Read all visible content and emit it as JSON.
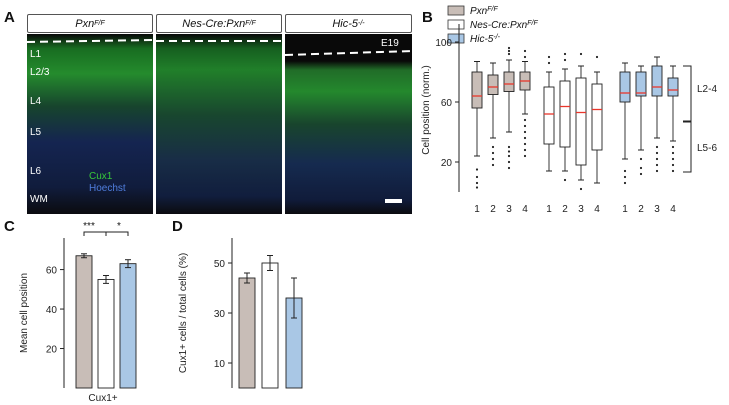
{
  "panel_letters": {
    "a": "A",
    "b": "B",
    "c": "C",
    "d": "D"
  },
  "panel_a": {
    "genotypes": [
      {
        "name": "Pxn",
        "sup": "F/F"
      },
      {
        "name": "Nes-Cre:Pxn",
        "sup": "F/F"
      },
      {
        "name": "Hic-5",
        "sup": "-/-"
      }
    ],
    "age_label": "E19",
    "layers": [
      "L1",
      "L2/3",
      "L4",
      "L5",
      "L6",
      "WM"
    ],
    "stain_labels": [
      "Cux1",
      "Hoechst"
    ],
    "colors": {
      "cux1": "#37c83a",
      "hoechst": "#3f63c9"
    }
  },
  "chart_data": [
    {
      "id": "B",
      "type": "box",
      "ylabel": "Cell position (norm.)",
      "yticks": [
        20,
        60,
        100
      ],
      "ylim": [
        0,
        112
      ],
      "categories": [
        "1",
        "2",
        "3",
        "4",
        "1",
        "2",
        "3",
        "4",
        "1",
        "2",
        "3",
        "4"
      ],
      "series": [
        {
          "name": "Pxn",
          "sup": "F/F",
          "color": "#c8bdb7",
          "boxes": [
            {
              "min": 24,
              "q1": 56,
              "median": 64,
              "q3": 80,
              "max": 87,
              "outliers": [
                15,
                10,
                6,
                3
              ]
            },
            {
              "min": 36,
              "q1": 65,
              "median": 70,
              "q3": 78,
              "max": 86,
              "outliers": [
                30,
                26,
                22,
                18
              ]
            },
            {
              "min": 40,
              "q1": 67,
              "median": 72,
              "q3": 80,
              "max": 88,
              "outliers": [
                30,
                27,
                24,
                20,
                16,
                92,
                94,
                96
              ]
            },
            {
              "min": 52,
              "q1": 68,
              "median": 74,
              "q3": 80,
              "max": 87,
              "outliers": [
                48,
                44,
                40,
                36,
                32,
                28,
                24,
                90,
                94
              ]
            }
          ]
        },
        {
          "name": "Nes-Cre:Pxn",
          "sup": "F/F",
          "color": "#ffffff",
          "boxes": [
            {
              "min": 14,
              "q1": 32,
              "median": 52,
              "q3": 70,
              "max": 80,
              "outliers": [
                90,
                86
              ]
            },
            {
              "min": 14,
              "q1": 30,
              "median": 57,
              "q3": 74,
              "max": 82,
              "outliers": [
                92,
                88,
                8
              ]
            },
            {
              "min": 8,
              "q1": 18,
              "median": 53,
              "q3": 76,
              "max": 84,
              "outliers": [
                92,
                2
              ]
            },
            {
              "min": 6,
              "q1": 28,
              "median": 55,
              "q3": 72,
              "max": 80,
              "outliers": [
                90
              ]
            }
          ]
        },
        {
          "name": "Hic-5",
          "sup": "-/-",
          "color": "#a9c7e5",
          "boxes": [
            {
              "min": 22,
              "q1": 60,
              "median": 66,
              "q3": 80,
              "max": 86,
              "outliers": [
                14,
                10,
                6
              ]
            },
            {
              "min": 28,
              "q1": 64,
              "median": 66,
              "q3": 80,
              "max": 84,
              "outliers": [
                22,
                16,
                12
              ]
            },
            {
              "min": 36,
              "q1": 64,
              "median": 70,
              "q3": 84,
              "max": 90,
              "outliers": [
                30,
                26,
                22,
                18,
                14
              ]
            },
            {
              "min": 34,
              "q1": 64,
              "median": 68,
              "q3": 76,
              "max": 84,
              "outliers": [
                30,
                26,
                22,
                18,
                14
              ]
            }
          ]
        }
      ],
      "legend_placement": "top",
      "brackets": [
        "L2-4",
        "L5-6"
      ]
    },
    {
      "id": "C",
      "type": "bar",
      "ylabel": "Mean cell position",
      "xlabel": "Cux1+",
      "yticks": [
        20,
        40,
        60
      ],
      "ylim": [
        0,
        76
      ],
      "values": [
        67,
        55,
        63
      ],
      "errors": [
        1,
        2,
        2
      ],
      "colors": [
        "#c8bdb7",
        "#ffffff",
        "#a9c7e5"
      ],
      "significance": [
        "***",
        "*"
      ]
    },
    {
      "id": "D",
      "type": "bar",
      "ylabel": "Cux1+ cells / total cells (%)",
      "yticks": [
        10,
        30,
        50
      ],
      "ylim": [
        0,
        60
      ],
      "values": [
        44,
        50,
        36
      ],
      "errors": [
        2,
        3,
        8
      ],
      "colors": [
        "#c8bdb7",
        "#ffffff",
        "#a9c7e5"
      ]
    }
  ]
}
